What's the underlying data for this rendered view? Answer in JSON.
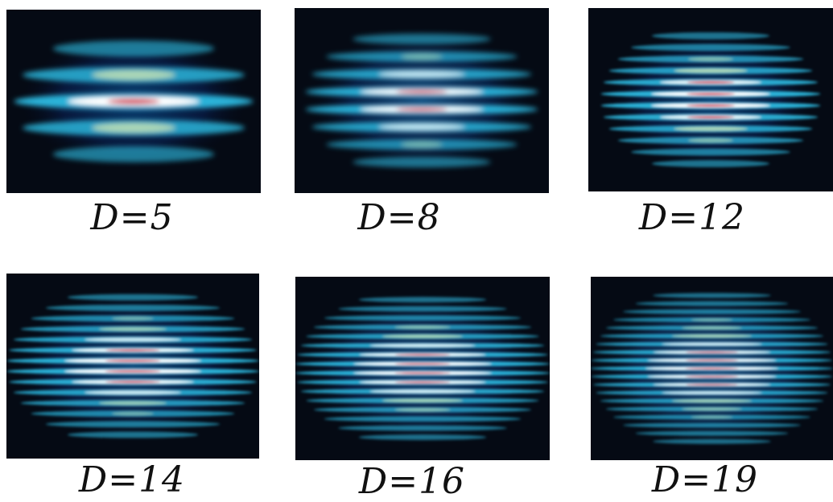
{
  "panels": [
    {
      "label": "D=5",
      "fringe_count": 5,
      "colormap": [
        "#000000",
        "#0a2a6e",
        "#0e6fc4",
        "#2bb3d9",
        "#e9f0b0",
        "#ffffff",
        "#cc1133"
      ]
    },
    {
      "label": "D=8",
      "fringe_count": 8,
      "colormap": [
        "#000000",
        "#0a2a6e",
        "#0e6fc4",
        "#2bb3d9",
        "#e9f0b0",
        "#ffffff",
        "#cc1133"
      ]
    },
    {
      "label": "D=12",
      "fringe_count": 12,
      "colormap": [
        "#000000",
        "#0a2a6e",
        "#0e6fc4",
        "#2bb3d9",
        "#e9f0b0",
        "#ffffff",
        "#cc1133"
      ]
    },
    {
      "label": "D=14",
      "fringe_count": 14,
      "colormap": [
        "#000000",
        "#0a2a6e",
        "#0e6fc4",
        "#2bb3d9",
        "#e9f0b0",
        "#ffffff",
        "#cc1133"
      ]
    },
    {
      "label": "D=16",
      "fringe_count": 16,
      "colormap": [
        "#000000",
        "#0a2a6e",
        "#0e6fc4",
        "#2bb3d9",
        "#e9f0b0",
        "#ffffff",
        "#cc1133"
      ]
    },
    {
      "label": "D=19",
      "fringe_count": 19,
      "colormap": [
        "#000000",
        "#0a2a6e",
        "#0e6fc4",
        "#2bb3d9",
        "#e9f0b0",
        "#ffffff",
        "#cc1133"
      ]
    }
  ]
}
